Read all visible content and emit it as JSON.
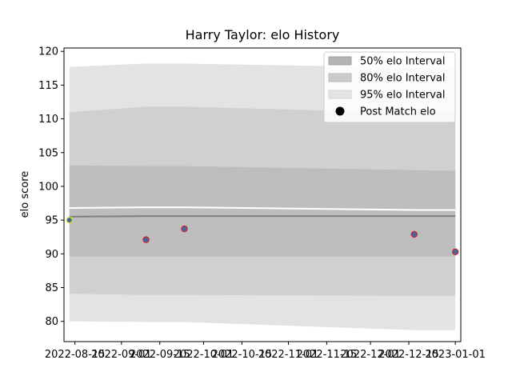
{
  "chart_data": {
    "type": "area",
    "title": "Harry Taylor: elo History",
    "xlabel": "",
    "ylabel": "elo score",
    "ylim": [
      77,
      120.5
    ],
    "xlim": [
      "2022-08-11",
      "2023-01-03"
    ],
    "yticks": [
      80,
      85,
      90,
      95,
      100,
      105,
      110,
      115,
      120
    ],
    "xticks": [
      "2022-08-15",
      "2022-09-01",
      "2022-09-15",
      "2022-10-01",
      "2022-10-15",
      "2022-11-01",
      "2022-11-15",
      "2022-12-01",
      "2022-12-15",
      "2023-01-01"
    ],
    "band_dates": [
      "2022-08-13",
      "2022-09-10",
      "2022-09-24",
      "2022-12-17",
      "2023-01-01"
    ],
    "bands": [
      {
        "name": "95% elo Interval",
        "color": "#e3e3e3",
        "lower": [
          80.0,
          79.9,
          79.9,
          78.7,
          78.7
        ],
        "upper": [
          117.7,
          118.2,
          118.2,
          117.6,
          117.6
        ]
      },
      {
        "name": "80% elo Interval",
        "color": "#d0d0d0",
        "lower": [
          84.1,
          83.9,
          83.9,
          83.8,
          83.8
        ],
        "upper": [
          111.0,
          111.8,
          111.8,
          110.9,
          110.9
        ]
      },
      {
        "name": "50% elo Interval",
        "color": "#bdbdbd",
        "lower": [
          89.6,
          89.6,
          89.6,
          89.6,
          89.6
        ],
        "upper": [
          103.1,
          103.0,
          103.0,
          102.4,
          102.3
        ]
      }
    ],
    "mean_line": {
      "color": "#808080",
      "values": [
        95.5,
        95.6,
        95.6,
        95.6,
        95.6
      ]
    },
    "white_line": {
      "color": "#ffffff",
      "values": [
        96.8,
        96.9,
        96.9,
        96.5,
        96.5
      ]
    },
    "post_match": {
      "name": "Post Match elo",
      "dates": [
        "2022-08-13",
        "2022-09-10",
        "2022-09-24",
        "2022-12-17",
        "2023-01-01"
      ],
      "values": [
        95.0,
        92.1,
        93.7,
        92.9,
        90.3
      ],
      "face_colors": [
        "#3f6aa3",
        "#3f6aa3",
        "#3f6aa3",
        "#3f6aa3",
        "#3f6aa3"
      ],
      "edge_colors": [
        "#f0e020",
        "#d42020",
        "#d42020",
        "#d42020",
        "#d42020"
      ]
    },
    "legend": {
      "position": "top-right",
      "entries": [
        {
          "label": "50% elo Interval",
          "kind": "patch",
          "color": "#b4b4b4",
          "edge": "#a0a0a0"
        },
        {
          "label": "80% elo Interval",
          "kind": "patch",
          "color": "#cbcbcb",
          "edge": "#b8b8b8"
        },
        {
          "label": "95% elo Interval",
          "kind": "patch",
          "color": "#e3e3e3",
          "edge": "#d4d4d4"
        },
        {
          "label": "Post Match elo",
          "kind": "marker",
          "color": "#000000"
        }
      ]
    }
  }
}
